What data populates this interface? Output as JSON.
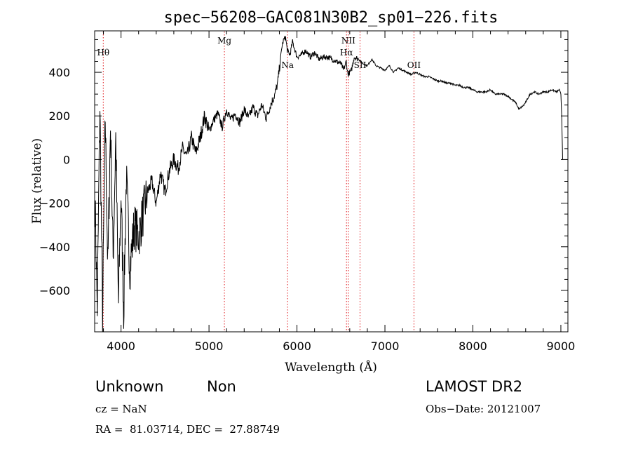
{
  "chart_data": {
    "type": "line",
    "title": "spec−56208−GAC081N30B2_sp01−226.fits",
    "xlabel": "Wavelength (Å)",
    "ylabel": "Flux (relative)",
    "xlim": [
      3700,
      9080
    ],
    "ylim": [
      -790,
      590
    ],
    "xticks": [
      4000,
      5000,
      6000,
      7000,
      8000,
      9000
    ],
    "yticks": [
      -600,
      -400,
      -200,
      0,
      200,
      400
    ],
    "ytick_labels": [
      "−600",
      "−400",
      "−200",
      "0",
      "200",
      "400"
    ],
    "grid": false,
    "series": [
      {
        "color": "#000000",
        "x": [
          3705,
          3730,
          3760,
          3790,
          3820,
          3850,
          3880,
          3910,
          3940,
          3970,
          4000,
          4030,
          4060,
          4100,
          4150,
          4200,
          4250,
          4300,
          4350,
          4400,
          4450,
          4500,
          4550,
          4600,
          4650,
          4700,
          4750,
          4800,
          4850,
          4900,
          4950,
          5000,
          5050,
          5100,
          5150,
          5200,
          5250,
          5300,
          5350,
          5400,
          5450,
          5500,
          5550,
          5600,
          5650,
          5700,
          5750,
          5780,
          5810,
          5830,
          5850,
          5870,
          5890,
          5920,
          5950,
          6000,
          6050,
          6100,
          6150,
          6200,
          6250,
          6300,
          6350,
          6400,
          6450,
          6500,
          6530,
          6560,
          6580,
          6620,
          6650,
          6700,
          6750,
          6800,
          6850,
          6900,
          6950,
          7000,
          7050,
          7100,
          7150,
          7200,
          7250,
          7300,
          7350,
          7400,
          7450,
          7500,
          7550,
          7600,
          7650,
          7700,
          7750,
          7800,
          7850,
          7900,
          7950,
          8000,
          8050,
          8100,
          8150,
          8200,
          8250,
          8300,
          8350,
          8400,
          8430,
          8460,
          8490,
          8510,
          8530,
          8550,
          8580,
          8610,
          8650,
          8700,
          8750,
          8800,
          8850,
          8900,
          8950,
          8980,
          9000,
          9010,
          9020
        ],
        "y": [
          -200,
          -680,
          250,
          -720,
          200,
          -500,
          150,
          -450,
          100,
          -660,
          -150,
          -700,
          -80,
          -500,
          -300,
          -350,
          -250,
          -150,
          -100,
          -200,
          -60,
          -150,
          -50,
          0,
          -40,
          50,
          10,
          100,
          30,
          100,
          200,
          130,
          180,
          210,
          150,
          230,
          180,
          210,
          170,
          230,
          190,
          240,
          200,
          250,
          190,
          250,
          300,
          350,
          450,
          520,
          550,
          560,
          500,
          480,
          540,
          470,
          480,
          500,
          470,
          490,
          460,
          470,
          470,
          460,
          450,
          440,
          410,
          450,
          390,
          410,
          470,
          460,
          440,
          430,
          460,
          430,
          420,
          410,
          430,
          400,
          420,
          410,
          400,
          390,
          400,
          390,
          380,
          380,
          370,
          360,
          360,
          350,
          350,
          340,
          340,
          330,
          330,
          320,
          310,
          310,
          310,
          320,
          300,
          300,
          300,
          290,
          280,
          270,
          260,
          240,
          230,
          240,
          250,
          270,
          300,
          310,
          300,
          310,
          310,
          320,
          310,
          320,
          300,
          200,
          0
        ]
      }
    ],
    "annotations": [
      {
        "label": "Hθ",
        "x": 3798
      },
      {
        "label": "Mg",
        "x": 5175
      },
      {
        "label": "Na",
        "x": 5893
      },
      {
        "label": "NII",
        "x": 6584
      },
      {
        "label": "Hα",
        "x": 6563
      },
      {
        "label": "SII",
        "x": 6717
      },
      {
        "label": "OII",
        "x": 7330
      }
    ],
    "line_color": "#e0181c"
  },
  "info": {
    "type1": "Unknown",
    "type2": "Non",
    "cz": "cz = NaN",
    "coords": "RA =  81.03714, DEC =  27.88749",
    "survey": "LAMOST DR2",
    "obsdate": "Obs−Date: 20121007"
  }
}
